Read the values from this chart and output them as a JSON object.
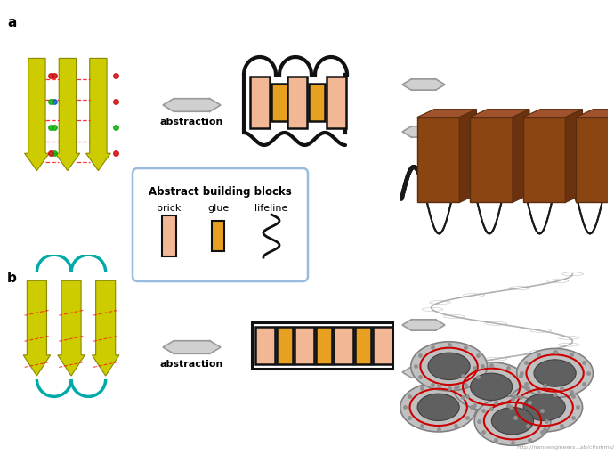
{
  "fig_width": 6.9,
  "fig_height": 5.11,
  "dpi": 100,
  "background": "#ffffff",
  "brick_color": "#f2b896",
  "glue_color": "#e8a020",
  "outline_color": "#111111",
  "arrow_color": "#c0c0c0",
  "arrow_fill": "#d8d8d8",
  "box_border_color": "#99bbdd",
  "label_a": "a",
  "label_b": "b",
  "text_abstraction": "abstraction",
  "box_title": "Abstract building blocks",
  "brick_label": "brick",
  "glue_label": "glue",
  "lifeline_label": "lifeline",
  "url_credit": "http://nanoengineers.Lab/ci/smms/"
}
